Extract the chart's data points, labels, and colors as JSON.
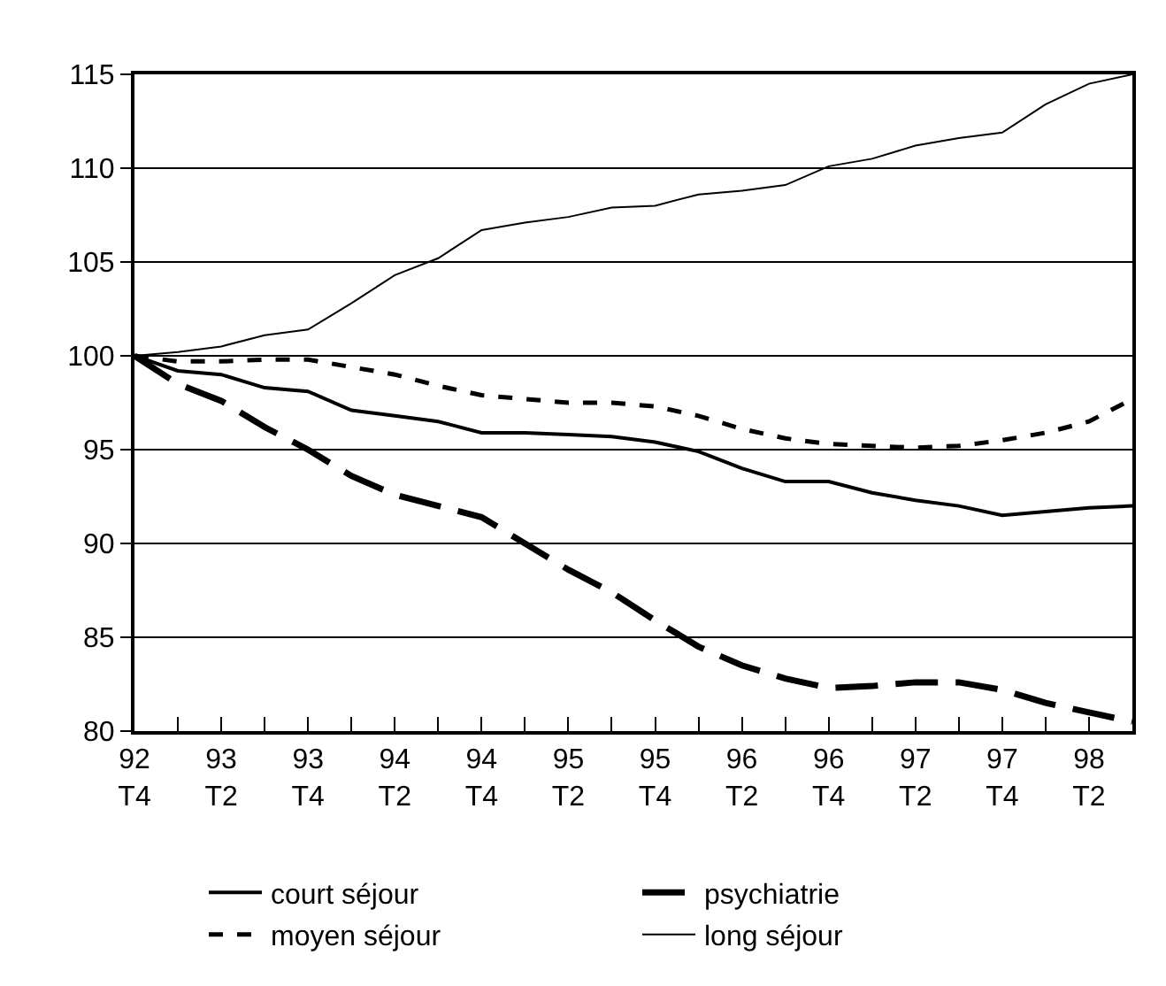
{
  "chart_data": {
    "type": "line",
    "categories": [
      "92\nT4",
      null,
      "93\nT2",
      null,
      "93\nT4",
      null,
      "94\nT2",
      null,
      "94\nT4",
      null,
      "95\nT2",
      null,
      "95\nT4",
      null,
      "96\nT2",
      null,
      "96\nT4",
      null,
      "97\nT2",
      null,
      "97\nT4",
      null,
      "98\nT2",
      null
    ],
    "series": [
      {
        "name": "court séjour",
        "color": "#000000",
        "line_style": "solid",
        "values": [
          100,
          99.2,
          99.0,
          98.3,
          98.1,
          97.1,
          96.8,
          96.5,
          95.9,
          95.9,
          95.8,
          95.7,
          95.4,
          94.9,
          94.0,
          93.3,
          93.3,
          92.7,
          92.3,
          92.0,
          91.5,
          91.7,
          91.9,
          92.0
        ]
      },
      {
        "name": "psychiatrie",
        "color": "#000000",
        "line_style": "dashed",
        "values": [
          100,
          98.5,
          97.6,
          96.2,
          95.0,
          93.6,
          92.6,
          92.0,
          91.4,
          90.0,
          88.6,
          87.4,
          85.9,
          84.5,
          83.5,
          82.8,
          82.3,
          82.4,
          82.6,
          82.6,
          82.2,
          81.5,
          81.0,
          80.5
        ]
      },
      {
        "name": "moyen séjour",
        "color": "#000000",
        "line_style": "dotted",
        "values": [
          100,
          99.7,
          99.7,
          99.8,
          99.8,
          99.4,
          99.0,
          98.4,
          97.9,
          97.7,
          97.5,
          97.5,
          97.3,
          96.8,
          96.1,
          95.6,
          95.3,
          95.2,
          95.1,
          95.2,
          95.5,
          95.9,
          96.5,
          97.7
        ]
      },
      {
        "name": "long séjour",
        "color": "#000000",
        "line_style": "solid",
        "values": [
          100,
          100.2,
          100.5,
          101.1,
          101.4,
          102.8,
          104.3,
          105.2,
          106.7,
          107.1,
          107.4,
          107.9,
          108.0,
          108.6,
          108.8,
          109.1,
          110.1,
          110.5,
          111.2,
          111.6,
          111.9,
          113.4,
          114.5,
          115.0
        ]
      }
    ],
    "ylim": [
      80,
      115
    ],
    "yticks": [
      80,
      85,
      90,
      95,
      100,
      105,
      110,
      115
    ],
    "grid": "y",
    "legend": "bottom",
    "marker": "none"
  }
}
